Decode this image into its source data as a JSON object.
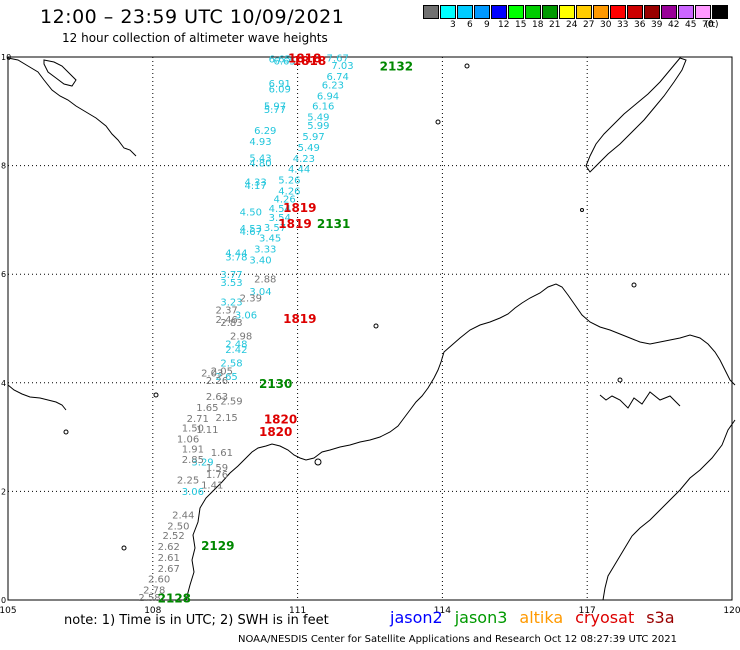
{
  "header": {
    "title": "12:00 – 23:59 UTC 10/09/2021",
    "subtitle": "12 hour collection of altimeter wave heights"
  },
  "legend": {
    "unit": "(ft)",
    "items": [
      {
        "label": "",
        "color": "#707070"
      },
      {
        "label": "3",
        "color": "#00ffff"
      },
      {
        "label": "6",
        "color": "#00ccff"
      },
      {
        "label": "9",
        "color": "#0099ff"
      },
      {
        "label": "12",
        "color": "#0000ff"
      },
      {
        "label": "15",
        "color": "#00ff00"
      },
      {
        "label": "18",
        "color": "#00cc00"
      },
      {
        "label": "21",
        "color": "#009900"
      },
      {
        "label": "24",
        "color": "#ffff00"
      },
      {
        "label": "27",
        "color": "#ffcc00"
      },
      {
        "label": "30",
        "color": "#ff9900"
      },
      {
        "label": "33",
        "color": "#ff0000"
      },
      {
        "label": "36",
        "color": "#cc0000"
      },
      {
        "label": "39",
        "color": "#990000"
      },
      {
        "label": "42",
        "color": "#990099"
      },
      {
        "label": "45",
        "color": "#cc66ff"
      },
      {
        "label": "70",
        "color": "#ff99ff"
      },
      {
        "label": "",
        "color": "#000000"
      }
    ]
  },
  "map": {
    "lon_ticks": [
      "105",
      "108",
      "111",
      "114",
      "117",
      "120"
    ],
    "lat_ticks": [
      "0",
      "2",
      "4",
      "6",
      "8",
      "10"
    ],
    "lon_range": [
      105,
      120
    ],
    "lat_range": [
      0,
      10
    ],
    "track_colors": {
      "gray": "#777777",
      "cyan": "#22c6dc",
      "red": "#dd0000",
      "green": "#008800"
    }
  },
  "observations": [
    {
      "lon": 110.4,
      "lat": 9.9,
      "text": "6.65",
      "color": "cyan"
    },
    {
      "lon": 110.5,
      "lat": 9.86,
      "text": "6.65",
      "color": "cyan"
    },
    {
      "lon": 111.6,
      "lat": 9.92,
      "text": "7.67",
      "color": "cyan"
    },
    {
      "lon": 111.7,
      "lat": 9.78,
      "text": "7.03",
      "color": "cyan"
    },
    {
      "lon": 111.6,
      "lat": 9.58,
      "text": "6.74",
      "color": "cyan"
    },
    {
      "lon": 111.5,
      "lat": 9.42,
      "text": "6.23",
      "color": "cyan"
    },
    {
      "lon": 111.4,
      "lat": 9.22,
      "text": "6.94",
      "color": "cyan"
    },
    {
      "lon": 111.3,
      "lat": 9.03,
      "text": "6.16",
      "color": "cyan"
    },
    {
      "lon": 111.2,
      "lat": 8.83,
      "text": "5.49",
      "color": "cyan"
    },
    {
      "lon": 111.2,
      "lat": 8.67,
      "text": "5.99",
      "color": "cyan"
    },
    {
      "lon": 111.1,
      "lat": 8.47,
      "text": "5.97",
      "color": "cyan"
    },
    {
      "lon": 111.0,
      "lat": 8.27,
      "text": "5.49",
      "color": "cyan"
    },
    {
      "lon": 110.9,
      "lat": 8.07,
      "text": "4.23",
      "color": "cyan"
    },
    {
      "lon": 110.8,
      "lat": 7.87,
      "text": "4.44",
      "color": "cyan"
    },
    {
      "lon": 110.6,
      "lat": 7.67,
      "text": "5.26",
      "color": "cyan"
    },
    {
      "lon": 110.6,
      "lat": 7.47,
      "text": "4.26",
      "color": "cyan"
    },
    {
      "lon": 110.5,
      "lat": 7.32,
      "text": "4.26",
      "color": "cyan"
    },
    {
      "lon": 110.4,
      "lat": 7.15,
      "text": "4.54",
      "color": "cyan"
    },
    {
      "lon": 110.4,
      "lat": 6.98,
      "text": "3.54",
      "color": "cyan"
    },
    {
      "lon": 110.3,
      "lat": 6.8,
      "text": "3.57",
      "color": "cyan"
    },
    {
      "lon": 110.2,
      "lat": 6.6,
      "text": "3.45",
      "color": "cyan"
    },
    {
      "lon": 110.1,
      "lat": 6.4,
      "text": "3.33",
      "color": "cyan"
    },
    {
      "lon": 110.0,
      "lat": 6.2,
      "text": "3.40",
      "color": "cyan"
    },
    {
      "lon": 110.4,
      "lat": 9.45,
      "text": "6.91",
      "color": "cyan"
    },
    {
      "lon": 110.4,
      "lat": 9.35,
      "text": "6.09",
      "color": "cyan"
    },
    {
      "lon": 110.3,
      "lat": 9.03,
      "text": "5.97",
      "color": "cyan"
    },
    {
      "lon": 110.3,
      "lat": 8.97,
      "text": "5.77",
      "color": "cyan"
    },
    {
      "lon": 110.1,
      "lat": 8.58,
      "text": "6.29",
      "color": "cyan"
    },
    {
      "lon": 110.0,
      "lat": 8.38,
      "text": "4.93",
      "color": "cyan"
    },
    {
      "lon": 110.0,
      "lat": 8.08,
      "text": "5.43",
      "color": "cyan"
    },
    {
      "lon": 110.0,
      "lat": 7.98,
      "text": "4.80",
      "color": "cyan"
    },
    {
      "lon": 109.9,
      "lat": 7.63,
      "text": "4.33",
      "color": "cyan"
    },
    {
      "lon": 109.9,
      "lat": 7.57,
      "text": "4.17",
      "color": "cyan"
    },
    {
      "lon": 109.8,
      "lat": 7.08,
      "text": "4.50",
      "color": "cyan"
    },
    {
      "lon": 109.8,
      "lat": 6.78,
      "text": "4.53",
      "color": "cyan"
    },
    {
      "lon": 109.8,
      "lat": 6.72,
      "text": "4.67",
      "color": "cyan"
    },
    {
      "lon": 109.5,
      "lat": 6.33,
      "text": "4.44",
      "color": "cyan"
    },
    {
      "lon": 109.5,
      "lat": 6.25,
      "text": "3.78",
      "color": "cyan"
    },
    {
      "lon": 109.4,
      "lat": 5.93,
      "text": "3.77",
      "color": "cyan"
    },
    {
      "lon": 109.4,
      "lat": 5.78,
      "text": "3.53",
      "color": "cyan"
    },
    {
      "lon": 110.0,
      "lat": 5.62,
      "text": "3.04",
      "color": "cyan"
    },
    {
      "lon": 109.4,
      "lat": 5.42,
      "text": "3.23",
      "color": "cyan"
    },
    {
      "lon": 109.7,
      "lat": 5.18,
      "text": "3.06",
      "color": "cyan"
    },
    {
      "lon": 109.5,
      "lat": 4.65,
      "text": "2.48",
      "color": "cyan"
    },
    {
      "lon": 109.5,
      "lat": 4.55,
      "text": "2.42",
      "color": "cyan"
    },
    {
      "lon": 109.4,
      "lat": 4.3,
      "text": "2.58",
      "color": "cyan"
    },
    {
      "lon": 109.3,
      "lat": 4.05,
      "text": "2.65",
      "color": "cyan"
    },
    {
      "lon": 108.8,
      "lat": 2.48,
      "text": "3.29",
      "color": "cyan"
    },
    {
      "lon": 108.6,
      "lat": 1.93,
      "text": "3.06",
      "color": "cyan"
    },
    {
      "lon": 110.1,
      "lat": 5.85,
      "text": "2.88",
      "color": "gray"
    },
    {
      "lon": 109.8,
      "lat": 5.5,
      "text": "2.39",
      "color": "gray"
    },
    {
      "lon": 109.3,
      "lat": 5.28,
      "text": "2.37",
      "color": "gray"
    },
    {
      "lon": 109.4,
      "lat": 5.05,
      "text": "2.83",
      "color": "gray"
    },
    {
      "lon": 109.3,
      "lat": 5.1,
      "text": "2.46",
      "color": "gray"
    },
    {
      "lon": 109.6,
      "lat": 4.8,
      "text": "2.98",
      "color": "gray"
    },
    {
      "lon": 109.2,
      "lat": 4.15,
      "text": "2.05",
      "color": "gray"
    },
    {
      "lon": 109.0,
      "lat": 4.12,
      "text": "2.03",
      "color": "gray"
    },
    {
      "lon": 109.1,
      "lat": 3.98,
      "text": "2.26",
      "color": "gray"
    },
    {
      "lon": 109.1,
      "lat": 3.68,
      "text": "2.63",
      "color": "gray"
    },
    {
      "lon": 109.4,
      "lat": 3.6,
      "text": "2.59",
      "color": "gray"
    },
    {
      "lon": 108.9,
      "lat": 3.48,
      "text": "1.65",
      "color": "gray"
    },
    {
      "lon": 109.3,
      "lat": 3.3,
      "text": "2.15",
      "color": "gray"
    },
    {
      "lon": 108.7,
      "lat": 3.28,
      "text": "2.71",
      "color": "gray"
    },
    {
      "lon": 108.6,
      "lat": 3.1,
      "text": "1.50",
      "color": "gray"
    },
    {
      "lon": 108.9,
      "lat": 3.08,
      "text": "1.11",
      "color": "gray"
    },
    {
      "lon": 108.5,
      "lat": 2.9,
      "text": "1.06",
      "color": "gray"
    },
    {
      "lon": 109.2,
      "lat": 2.65,
      "text": "1.61",
      "color": "gray"
    },
    {
      "lon": 108.6,
      "lat": 2.72,
      "text": "1.91",
      "color": "gray"
    },
    {
      "lon": 108.6,
      "lat": 2.52,
      "text": "2.85",
      "color": "gray"
    },
    {
      "lon": 109.1,
      "lat": 2.38,
      "text": "1.59",
      "color": "gray"
    },
    {
      "lon": 109.1,
      "lat": 2.25,
      "text": "1.76",
      "color": "gray"
    },
    {
      "lon": 108.5,
      "lat": 2.15,
      "text": "2.25",
      "color": "gray"
    },
    {
      "lon": 109.0,
      "lat": 2.05,
      "text": "1.41",
      "color": "gray"
    },
    {
      "lon": 108.4,
      "lat": 1.5,
      "text": "2.44",
      "color": "gray"
    },
    {
      "lon": 108.3,
      "lat": 1.3,
      "text": "2.50",
      "color": "gray"
    },
    {
      "lon": 108.2,
      "lat": 1.12,
      "text": "2.52",
      "color": "gray"
    },
    {
      "lon": 108.1,
      "lat": 0.92,
      "text": "2.62",
      "color": "gray"
    },
    {
      "lon": 108.1,
      "lat": 0.72,
      "text": "2.61",
      "color": "gray"
    },
    {
      "lon": 108.1,
      "lat": 0.52,
      "text": "2.67",
      "color": "gray"
    },
    {
      "lon": 107.9,
      "lat": 0.32,
      "text": "2.60",
      "color": "gray"
    },
    {
      "lon": 107.8,
      "lat": 0.12,
      "text": "2.78",
      "color": "gray"
    },
    {
      "lon": 107.7,
      "lat": -0.02,
      "text": "2.58",
      "color": "gray"
    },
    {
      "lon": 110.8,
      "lat": 9.9,
      "text": "1818",
      "color": "red"
    },
    {
      "lon": 110.9,
      "lat": 9.85,
      "text": "1818",
      "color": "red"
    },
    {
      "lon": 110.7,
      "lat": 7.15,
      "text": "1819",
      "color": "red"
    },
    {
      "lon": 110.6,
      "lat": 6.85,
      "text": "1819",
      "color": "red"
    },
    {
      "lon": 110.7,
      "lat": 5.1,
      "text": "1819",
      "color": "red"
    },
    {
      "lon": 110.3,
      "lat": 3.25,
      "text": "1820",
      "color": "red"
    },
    {
      "lon": 110.2,
      "lat": 3.02,
      "text": "1820",
      "color": "red"
    },
    {
      "lon": 112.7,
      "lat": 9.75,
      "text": "2132",
      "color": "green"
    },
    {
      "lon": 111.4,
      "lat": 6.85,
      "text": "2131",
      "color": "green"
    },
    {
      "lon": 110.2,
      "lat": 3.9,
      "text": "2130",
      "color": "green"
    },
    {
      "lon": 109.0,
      "lat": 0.92,
      "text": "2129",
      "color": "green"
    },
    {
      "lon": 108.1,
      "lat": -0.05,
      "text": "2128",
      "color": "green"
    }
  ],
  "footer": {
    "note": "note:  1) Time is in UTC;  2) SWH is in feet",
    "missions": [
      {
        "name": "jason2",
        "color": "#0000ff"
      },
      {
        "name": "jason3",
        "color": "#009900"
      },
      {
        "name": "altika",
        "color": "#ff9900"
      },
      {
        "name": "cryosat",
        "color": "#dd0000"
      },
      {
        "name": "s3a",
        "color": "#990000"
      }
    ],
    "credit": "NOAA/NESDIS Center for Satellite Applications and Research    Oct 12 08:27:39 UTC 2021"
  }
}
